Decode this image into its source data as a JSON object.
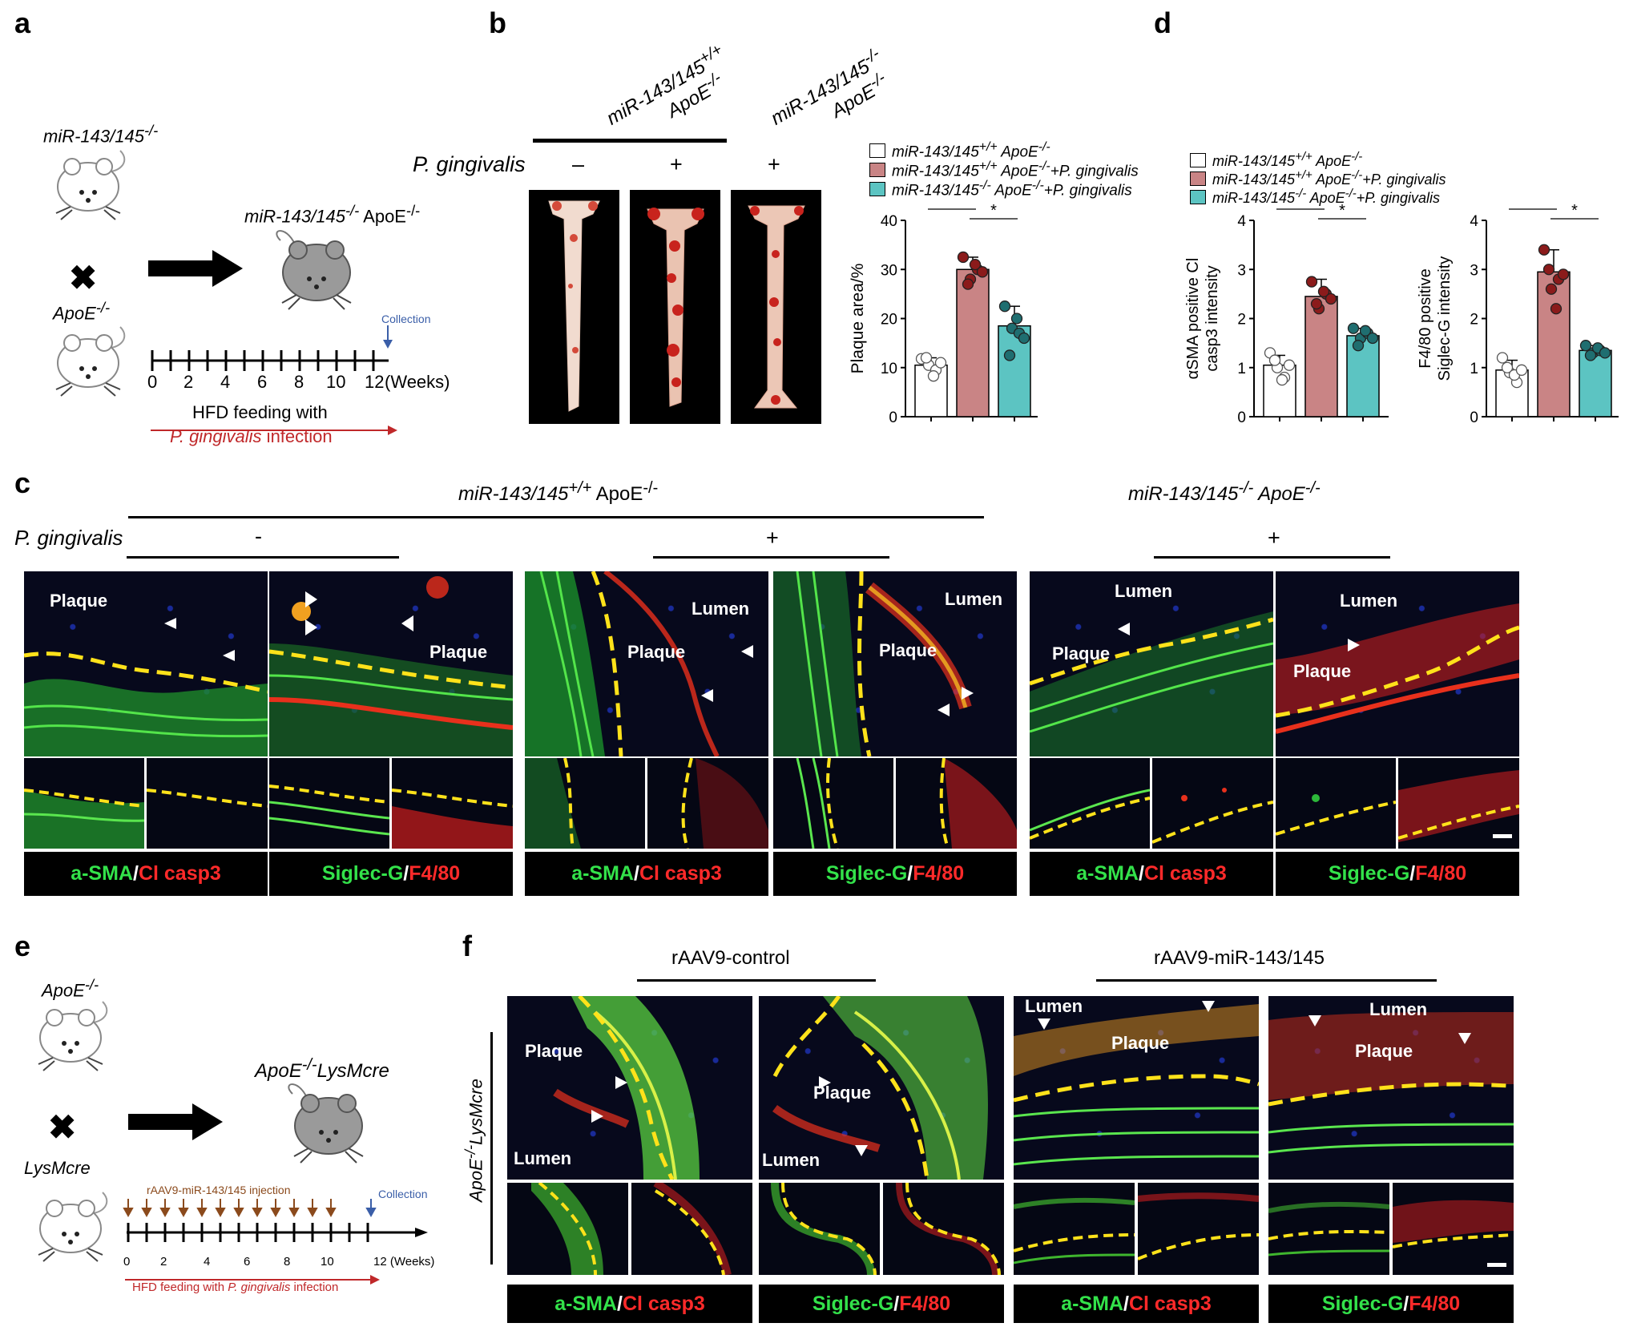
{
  "panels": {
    "a": {
      "label": "a",
      "mouse1": "miR-143/145",
      "mouse1_sup": "-/-",
      "mouse2": "ApoE",
      "mouse2_sup": "-/-",
      "result_prefix": "miR-143/145",
      "result_sup1": "-/-",
      "result_mid": " ApoE",
      "result_sup2": "-/-",
      "collection": "Collection",
      "ticks": [
        "0",
        "2",
        "4",
        "6",
        "8",
        "10",
        "12"
      ],
      "weeks": "(Weeks)",
      "feeding_line1": "HFD feeding with",
      "feeding_line2": "P. gingivalis infection"
    },
    "b": {
      "label": "b",
      "group1_line1": "miR-143/145",
      "group1_sup": "+/+",
      "group1_line2": "ApoE",
      "group1_sup2": "-/-",
      "group2_line1": "miR-143/145",
      "group2_sup": "-/-",
      "group2_line2": "ApoE",
      "group2_sup2": "-/-",
      "pg_label": "P. gingivalis",
      "signs": [
        "–",
        "+",
        "+"
      ]
    },
    "c": {
      "label": "c",
      "title_left_italic": "miR-143/145",
      "title_left_sup": "+/+",
      "title_left_tail": " ApoE",
      "title_left_sup2": "-/-",
      "title_right_italic": "miR-143/145",
      "title_right_sup": "-/-",
      "title_right_tail": " ApoE",
      "title_right_sup2": "-/-",
      "pg_label": "P. gingivalis",
      "signs": [
        "-",
        "+",
        "+"
      ],
      "image_labels": {
        "plaque": "Plaque",
        "lumen": "Lumen"
      },
      "stain1_green": "a-SMA",
      "stain1_red": "Cl casp3",
      "stain2_green": "Siglec-G",
      "stain2_red": "F4/80",
      "slash": "/"
    },
    "d": {
      "label": "d"
    },
    "e": {
      "label": "e",
      "mouse1": "ApoE",
      "mouse1_sup": "-/-",
      "mouse2": "LysMcre",
      "result": "ApoE",
      "result_sup": "-/-",
      "result_tail": "LysMcre",
      "injection": "rAAV9-miR-143/145 injection",
      "collection": "Collection",
      "ticks": [
        "0",
        "2",
        "4",
        "6",
        "8",
        "10",
        "12 (Weeks)"
      ],
      "feeding_prefix": "HFD feeding with ",
      "feeding_italic": "P. gingivalis",
      "feeding_suffix": " infection"
    },
    "f": {
      "label": "f",
      "group1": "rAAV9-control",
      "group2": "rAAV9-miR-143/145",
      "side_label": "ApoE",
      "side_sup": "-/-",
      "side_tail": "LysMcre"
    }
  },
  "legend": {
    "items": [
      {
        "italic": "miR-143/145",
        "sup": "+/+",
        "mid": " ApoE",
        "sup2": "-/-",
        "tail": "",
        "color": "#ffffff"
      },
      {
        "italic": "miR-143/145",
        "sup": "+/+",
        "mid": " ApoE",
        "sup2": "-/-",
        "tail": "+P. gingivalis",
        "color": "#c98485"
      },
      {
        "italic": "miR-143/145",
        "sup": "-/-",
        "mid": " ApoE",
        "sup2": "-/-",
        "tail": "+P. gingivalis",
        "color": "#5cc4c2"
      }
    ]
  },
  "chart_data": [
    {
      "type": "bar",
      "panel": "b",
      "ylabel": "Plaque area/%",
      "ylim": [
        0,
        40
      ],
      "yticks": [
        "0",
        "10",
        "20",
        "30",
        "40"
      ],
      "categories": [
        "miR-143/145+/+ ApoE-/-",
        "miR-143/145+/+ ApoE-/- +P. gingivalis",
        "miR-143/145-/- ApoE-/- +P. gingivalis"
      ],
      "values": [
        10.5,
        30,
        18.5
      ],
      "errors": [
        1.5,
        2.5,
        4
      ],
      "points": [
        [
          11.8,
          10.5,
          9.5,
          12,
          8.3,
          11
        ],
        [
          32.5,
          28,
          30,
          27,
          31,
          29.5
        ],
        [
          22.5,
          18,
          17,
          12.5,
          20,
          16
        ]
      ],
      "colors": [
        "#ffffff",
        "#c98485",
        "#5cc4c2"
      ],
      "dot_colors": [
        "#ffffff",
        "#8b1b1b",
        "#1f6e70"
      ],
      "significance": [
        {
          "from": 0,
          "to": 1,
          "label": "*"
        },
        {
          "from": 1,
          "to": 2,
          "label": "*"
        }
      ]
    },
    {
      "type": "bar",
      "panel": "d-left",
      "ylabel_line1": "αSMA positive Cl",
      "ylabel_line2": "casp3 intensity",
      "ylim": [
        0,
        4
      ],
      "yticks": [
        "0",
        "1",
        "2",
        "3",
        "4"
      ],
      "categories": [
        "miR-143/145+/+ ApoE-/-",
        "miR-143/145+/+ ApoE-/- +P. gingivalis",
        "miR-143/145-/- ApoE-/- +P. gingivalis"
      ],
      "values": [
        1.05,
        2.45,
        1.65
      ],
      "errors": [
        0.2,
        0.35,
        0.15
      ],
      "points": [
        [
          1.3,
          1.0,
          0.8,
          1.15,
          0.75,
          1.05
        ],
        [
          2.75,
          2.2,
          2.5,
          2.3,
          2.55,
          2.4
        ],
        [
          1.8,
          1.6,
          1.7,
          1.45,
          1.75,
          1.6
        ]
      ],
      "colors": [
        "#ffffff",
        "#c98485",
        "#5cc4c2"
      ],
      "dot_colors": [
        "#ffffff",
        "#8b1b1b",
        "#1f6e70"
      ],
      "significance": [
        {
          "from": 0,
          "to": 1,
          "label": "*"
        },
        {
          "from": 1,
          "to": 2,
          "label": "*"
        }
      ]
    },
    {
      "type": "bar",
      "panel": "d-right",
      "ylabel_line1": "F4/80 positive",
      "ylabel_line2": "Siglec-G intensity",
      "ylim": [
        0,
        4
      ],
      "yticks": [
        "0",
        "1",
        "2",
        "3",
        "4"
      ],
      "categories": [
        "miR-143/145+/+ ApoE-/-",
        "miR-143/145+/+ ApoE-/- +P. gingivalis",
        "miR-143/145-/- ApoE-/- +P. gingivalis"
      ],
      "values": [
        0.95,
        2.95,
        1.35
      ],
      "errors": [
        0.2,
        0.45,
        0.1
      ],
      "points": [
        [
          1.2,
          0.9,
          0.7,
          1.0,
          0.85,
          0.95
        ],
        [
          3.4,
          2.6,
          2.8,
          3.0,
          2.2,
          2.9
        ],
        [
          1.45,
          1.3,
          1.35,
          1.25,
          1.4,
          1.3
        ]
      ],
      "colors": [
        "#ffffff",
        "#c98485",
        "#5cc4c2"
      ],
      "dot_colors": [
        "#ffffff",
        "#8b1b1b",
        "#1f6e70"
      ],
      "significance": [
        {
          "from": 0,
          "to": 1,
          "label": "**"
        },
        {
          "from": 1,
          "to": 2,
          "label": "*"
        }
      ]
    }
  ]
}
